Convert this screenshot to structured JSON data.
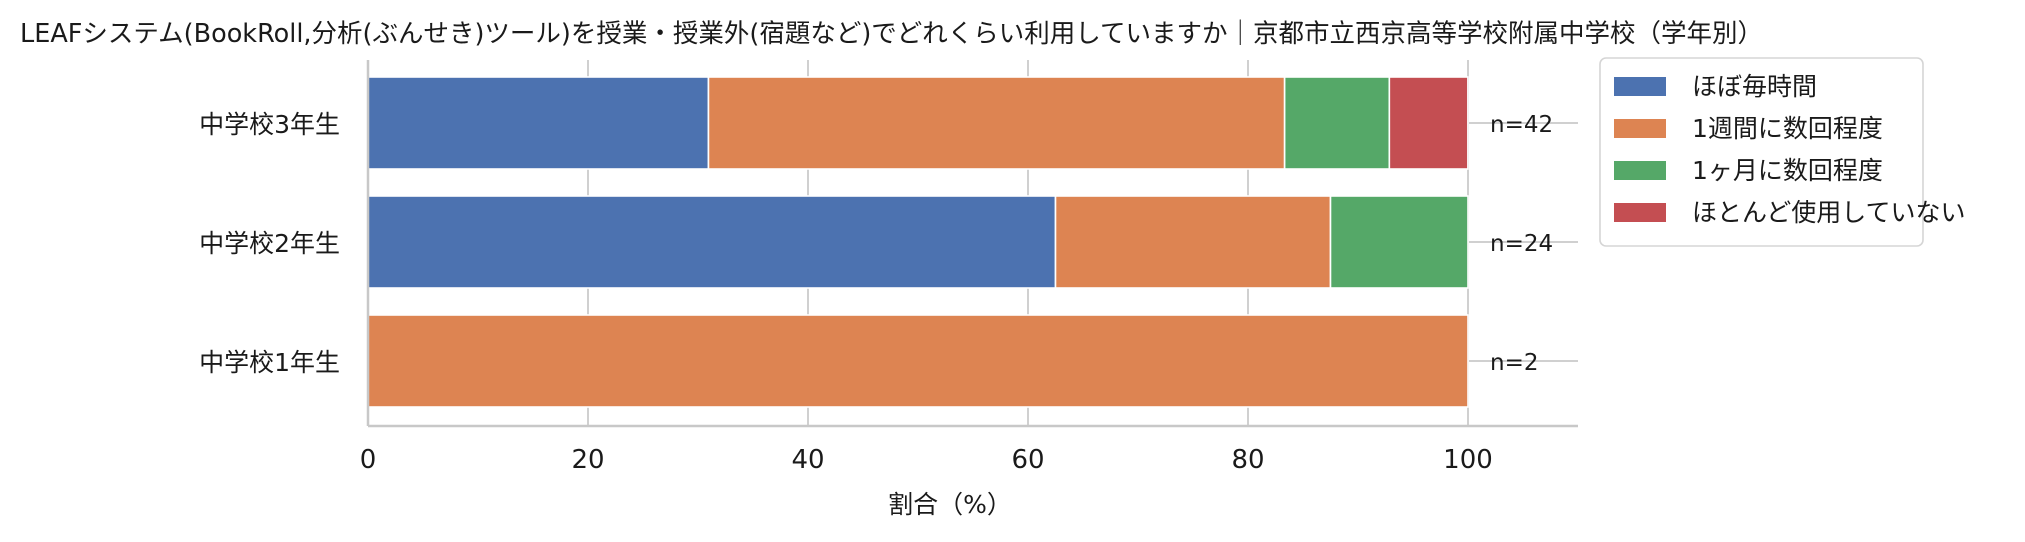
{
  "chart_data": {
    "type": "bar",
    "orientation": "horizontal",
    "stacked": true,
    "title": "LEAFシステム(BookRoll,分析(ぶんせき)ツール)を授業・授業外(宿題など)でどれくらい利用していますか｜京都市立西京高等学校附属中学校（学年別）",
    "xlabel": "割合（%）",
    "ylabel": "",
    "xlim": [
      0,
      110
    ],
    "xticks": [
      0,
      20,
      40,
      60,
      80,
      100
    ],
    "grid": true,
    "legend_position": "right-outside-top",
    "categories": [
      "中学校3年生",
      "中学校2年生",
      "中学校1年生"
    ],
    "n_labels": [
      "n=42",
      "n=24",
      "n=2"
    ],
    "series": [
      {
        "name": "ほぼ毎時間",
        "color": "#4c72b0",
        "values": [
          30.95,
          62.5,
          0
        ]
      },
      {
        "name": "1週間に数回程度",
        "color": "#dd8452",
        "values": [
          52.38,
          25.0,
          100
        ]
      },
      {
        "name": "1ヶ月に数回程度",
        "color": "#55a868",
        "values": [
          9.52,
          12.5,
          0
        ]
      },
      {
        "name": "ほとんど使用していない",
        "color": "#c44e52",
        "values": [
          7.14,
          0,
          0
        ]
      }
    ]
  }
}
